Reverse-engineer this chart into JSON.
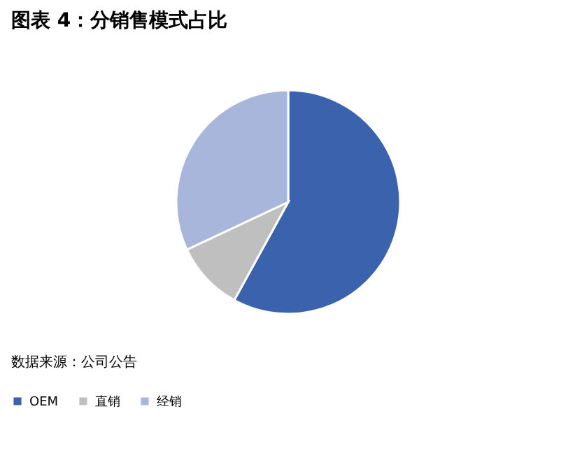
{
  "chart_data": {
    "type": "pie",
    "title": "图表 4：分销售模式占比",
    "categories": [
      "OEM",
      "直销",
      "经销"
    ],
    "values": [
      58,
      10,
      32
    ],
    "colors": [
      "#3a62ad",
      "#bfbfbf",
      "#a9b6db"
    ],
    "legend": "bottom",
    "annotations": [
      "数据来源：公司公告"
    ]
  }
}
